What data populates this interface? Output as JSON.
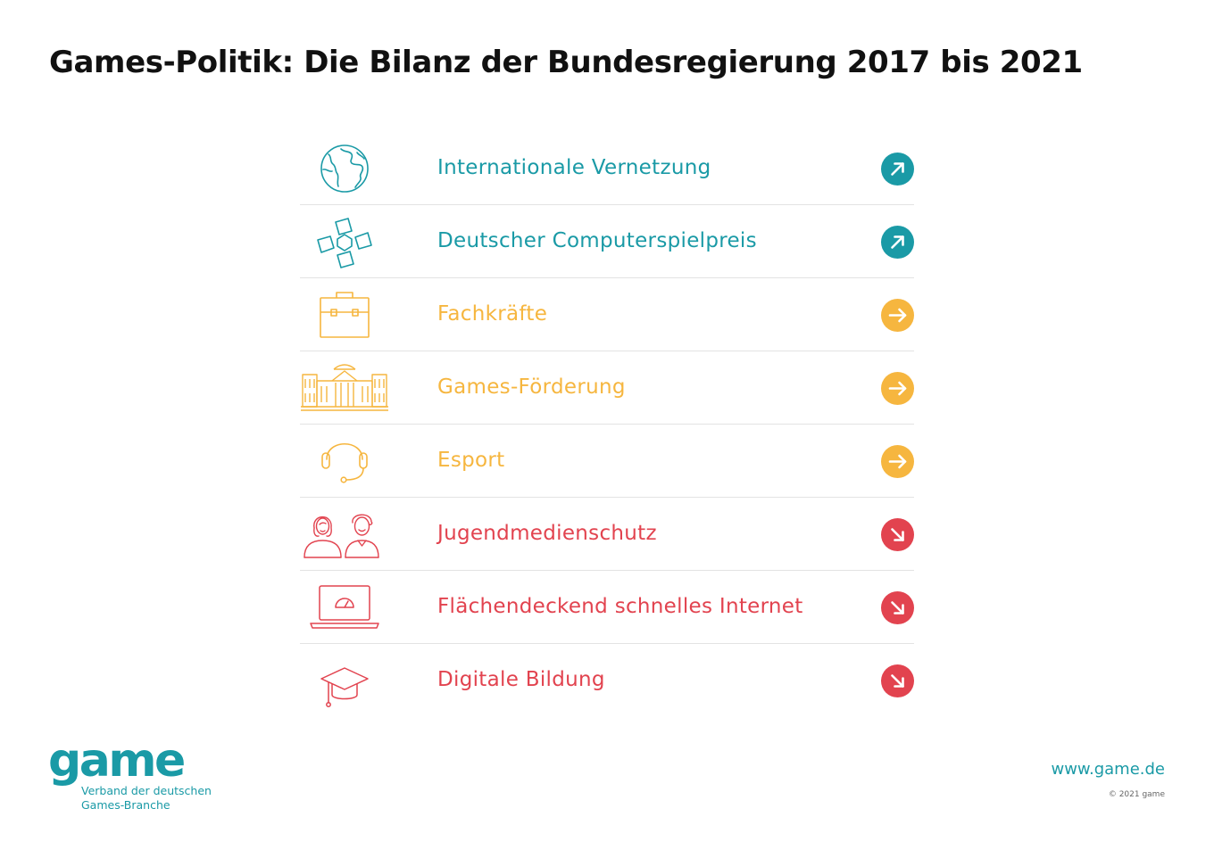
{
  "title": "Games-Politik: Die Bilanz der Bundesregierung 2017 bis 2021",
  "colors": {
    "teal": "#1a9aa6",
    "yellow": "#f6b63f",
    "red": "#e2434f",
    "divider": "#e3e3e3"
  },
  "items": [
    {
      "label": "Internationale Vernetzung",
      "icon": "globe-icon",
      "trend": "up",
      "color": "#1a9aa6"
    },
    {
      "label": "Deutscher Computerspielpreis",
      "icon": "award-logo-icon",
      "trend": "up",
      "color": "#1a9aa6"
    },
    {
      "label": "Fachkräfte",
      "icon": "briefcase-icon",
      "trend": "neutral",
      "color": "#f6b63f"
    },
    {
      "label": "Games-Förderung",
      "icon": "reichstag-building-icon",
      "trend": "neutral",
      "color": "#f6b63f"
    },
    {
      "label": "Esport",
      "icon": "headset-icon",
      "trend": "neutral",
      "color": "#f6b63f"
    },
    {
      "label": "Jugendmedienschutz",
      "icon": "young-people-icon",
      "trend": "down",
      "color": "#e2434f"
    },
    {
      "label": "Flächendeckend schnelles Internet",
      "icon": "laptop-speedometer-icon",
      "trend": "down",
      "color": "#e2434f"
    },
    {
      "label": "Digitale Bildung",
      "icon": "graduation-cap-icon",
      "trend": "down",
      "color": "#e2434f"
    }
  ],
  "footer": {
    "logo_word": "game",
    "logo_line1": "Verband der deutschen",
    "logo_line2": "Games-Branche",
    "website": "www.game.de",
    "copyright": "© 2021 game"
  }
}
